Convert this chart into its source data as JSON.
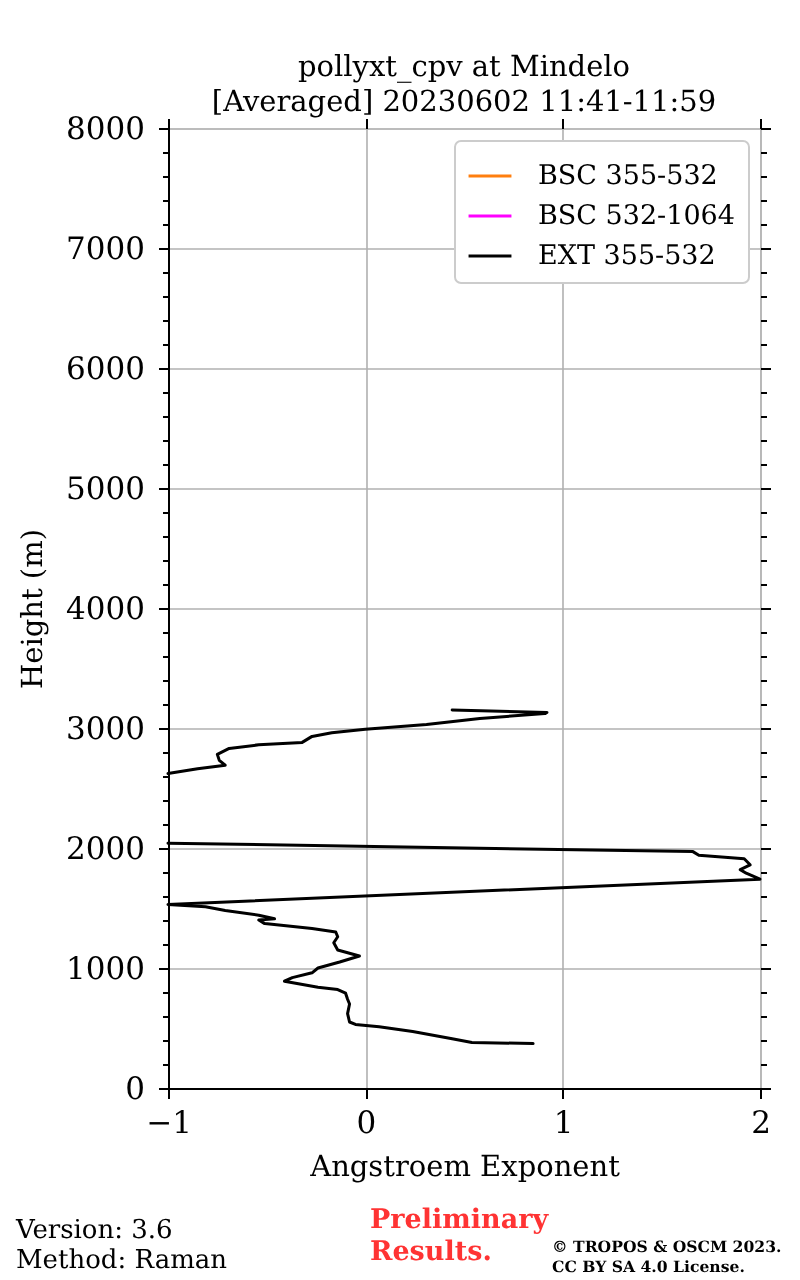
{
  "chart_data": {
    "type": "line",
    "title": "pollyxt_cpv at Mindelo",
    "subtitle": "[Averaged] 20230602 11:41-11:59",
    "xlabel": "Angstroem Exponent",
    "ylabel": "Height (m)",
    "xlim": [
      -1,
      2
    ],
    "xticks": [
      -1,
      0,
      1,
      2
    ],
    "ylim": [
      0,
      8000
    ],
    "yticks": [
      0,
      {
        "value": 200,
        "label": null
      },
      {
        "value": 400,
        "label": null
      },
      {
        "value": 600,
        "label": null
      },
      {
        "value": 800,
        "label": null
      },
      1000,
      {
        "value": 1200,
        "label": null
      },
      {
        "value": 1400,
        "label": null
      },
      {
        "value": 1600,
        "label": null
      },
      {
        "value": 1800,
        "label": null
      },
      2000,
      {
        "value": 2200,
        "label": null
      },
      {
        "value": 2400,
        "label": null
      },
      {
        "value": 2600,
        "label": null
      },
      {
        "value": 2800,
        "label": null
      },
      3000,
      {
        "value": 3200,
        "label": null
      },
      {
        "value": 3400,
        "label": null
      },
      {
        "value": 3600,
        "label": null
      },
      {
        "value": 3800,
        "label": null
      },
      4000,
      {
        "value": 4200,
        "label": null
      },
      {
        "value": 4400,
        "label": null
      },
      {
        "value": 4600,
        "label": null
      },
      {
        "value": 4800,
        "label": null
      },
      5000,
      {
        "value": 5200,
        "label": null
      },
      {
        "value": 5400,
        "label": null
      },
      {
        "value": 5600,
        "label": null
      },
      {
        "value": 5800,
        "label": null
      },
      6000,
      {
        "value": 6200,
        "label": null
      },
      {
        "value": 6400,
        "label": null
      },
      {
        "value": 6600,
        "label": null
      },
      {
        "value": 6800,
        "label": null
      },
      7000,
      {
        "value": 7200,
        "label": null
      },
      {
        "value": 7400,
        "label": null
      },
      {
        "value": 7600,
        "label": null
      },
      {
        "value": 7800,
        "label": null
      },
      8000
    ],
    "grid": true,
    "legend": "top right",
    "line_style": "solid",
    "series": [
      {
        "name": "BSC 355-532",
        "color": "#ff7f0e"
      },
      {
        "name": "BSC 532-1064",
        "color": "#ff00ff"
      },
      {
        "name": "EXT 355-532",
        "color": "#000000",
        "x": [
          0.85,
          0.54,
          0.44,
          0.24,
          0.07,
          -0.05,
          -0.08,
          -0.09,
          -0.08,
          -0.09,
          -0.1,
          -0.14,
          -0.24,
          -0.41,
          -0.37,
          -0.27,
          -0.24,
          -0.13,
          -0.03,
          -0.14,
          -0.16,
          -0.14,
          -0.15,
          -0.27,
          -0.51,
          -0.54,
          -0.46,
          -0.54,
          -0.71,
          -0.81,
          -1.0,
          2.0,
          1.93,
          1.9,
          1.95,
          1.92,
          1.69,
          1.66,
          -1.0,
          null,
          -1.0,
          -0.85,
          -0.71,
          -0.74,
          -0.75,
          -0.69,
          -0.54,
          -0.32,
          -0.27,
          -0.17,
          0.0,
          0.31,
          0.58,
          0.91,
          0.92,
          0.44
        ],
        "values": [
          370,
          380,
          410,
          470,
          510,
          530,
          550,
          620,
          700,
          740,
          790,
          820,
          840,
          890,
          920,
          960,
          1000,
          1050,
          1100,
          1150,
          1210,
          1260,
          1300,
          1330,
          1370,
          1400,
          1410,
          1440,
          1480,
          1510,
          1530,
          1740,
          1790,
          1820,
          1860,
          1910,
          1940,
          1970,
          2040,
          null,
          2620,
          2660,
          2690,
          2730,
          2780,
          2830,
          2860,
          2880,
          2930,
          2960,
          2990,
          3030,
          3080,
          3120,
          3130,
          3150
        ]
      }
    ],
    "annotations": [
      "Version: 3.6",
      "Method: Raman",
      "Preliminary Results.",
      "© TROPOS & OSCM 2023. CC BY SA 4.0 License."
    ]
  }
}
